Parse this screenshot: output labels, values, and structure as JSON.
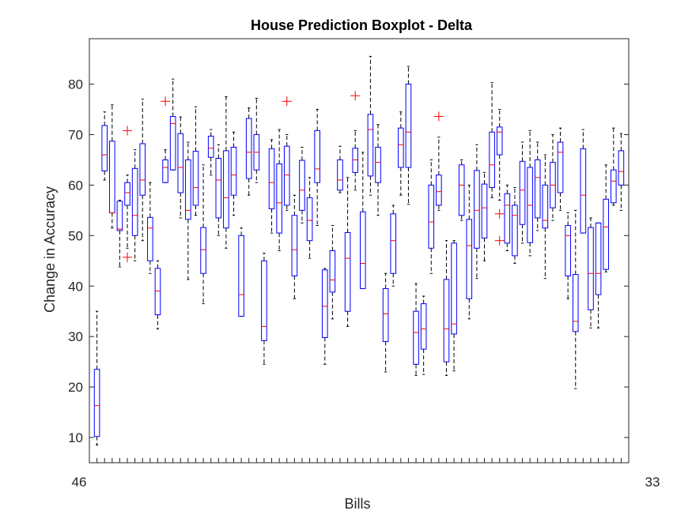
{
  "chart_data": {
    "type": "boxplot",
    "title": "House Prediction Boxplot - Delta",
    "xlabel": "Bills",
    "ylabel": "Change in Accuracy",
    "ylim": [
      5,
      89
    ],
    "yticks": [
      10,
      20,
      30,
      40,
      50,
      60,
      70,
      80
    ],
    "grid": false,
    "box_color": "#0000ff",
    "median_color": "#ff0000",
    "outlier_color": "#ff0000",
    "whisker_color": "#000000",
    "x_tick_label_first": "46",
    "x_tick_label_last": "33",
    "boxes": [
      {
        "min": 8.5,
        "q1": 10.2,
        "median": 16.3,
        "q3": 23.5,
        "max": 35
      },
      {
        "min": 61,
        "q1": 62.8,
        "median": 66,
        "q3": 71.8,
        "max": 74.5
      },
      {
        "min": 51.5,
        "q1": 54.5,
        "median": 54.5,
        "q3": 68.7,
        "max": 75.9
      },
      {
        "min": 43.8,
        "q1": 51,
        "median": 51.3,
        "q3": 56.8,
        "max": 57
      },
      {
        "min": 47.5,
        "q1": 56,
        "median": 58.5,
        "q3": 60.5,
        "max": 62,
        "outliers": [
          70.8,
          45.7
        ]
      },
      {
        "min": 45,
        "q1": 50,
        "median": 54,
        "q3": 63.3,
        "max": 67
      },
      {
        "min": 49,
        "q1": 58,
        "median": 61,
        "q3": 68.2,
        "max": 77
      },
      {
        "min": 42.5,
        "q1": 45,
        "median": 51.5,
        "q3": 53.6,
        "max": 60.5
      },
      {
        "min": 31.5,
        "q1": 34.3,
        "median": 39,
        "q3": 43.5,
        "max": 45
      },
      {
        "min": 60.5,
        "q1": 60.5,
        "median": 63.5,
        "q3": 65,
        "max": 67,
        "outliers": [
          76.6
        ]
      },
      {
        "min": 63,
        "q1": 63,
        "median": 72.2,
        "q3": 73.6,
        "max": 81
      },
      {
        "min": 53.5,
        "q1": 58.5,
        "median": 63.5,
        "q3": 70.2,
        "max": 73.5
      },
      {
        "min": 41.3,
        "q1": 53.2,
        "median": 55,
        "q3": 65,
        "max": 68.5
      },
      {
        "min": 54,
        "q1": 56,
        "median": 59.5,
        "q3": 66.7,
        "max": 75.5
      },
      {
        "min": 36.5,
        "q1": 42.5,
        "median": 47.2,
        "q3": 51.6,
        "max": 64
      },
      {
        "min": 62,
        "q1": 65.5,
        "median": 67.3,
        "q3": 69.7,
        "max": 71
      },
      {
        "min": 50,
        "q1": 53.5,
        "median": 61,
        "q3": 65.3,
        "max": 68
      },
      {
        "min": 47.5,
        "q1": 51.5,
        "median": 57.5,
        "q3": 66.8,
        "max": 77.5
      },
      {
        "min": 54,
        "q1": 58,
        "median": 62,
        "q3": 67.5,
        "max": 70.5
      },
      {
        "min": 34,
        "q1": 34,
        "median": 38.3,
        "q3": 50,
        "max": 51.5
      },
      {
        "min": 58,
        "q1": 61.3,
        "median": 66.5,
        "q3": 73.2,
        "max": 75.3
      },
      {
        "min": 60.5,
        "q1": 63,
        "median": 66.5,
        "q3": 70,
        "max": 77.2
      },
      {
        "min": 24.5,
        "q1": 29.2,
        "median": 32,
        "q3": 45,
        "max": 46.5
      },
      {
        "min": 50.5,
        "q1": 55.3,
        "median": 60.5,
        "q3": 67.2,
        "max": 69
      },
      {
        "min": 47,
        "q1": 50.5,
        "median": 56.5,
        "q3": 64.2,
        "max": 71
      },
      {
        "min": 55,
        "q1": 56,
        "median": 62,
        "q3": 67.7,
        "max": 70,
        "outliers": [
          76.6
        ]
      },
      {
        "min": 37.5,
        "q1": 42,
        "median": 47.2,
        "q3": 54,
        "max": 58
      },
      {
        "min": 52.5,
        "q1": 55,
        "median": 59,
        "q3": 64.9,
        "max": 67.5
      },
      {
        "min": 45.5,
        "q1": 49,
        "median": 53,
        "q3": 57.5,
        "max": 61.5
      },
      {
        "min": 52,
        "q1": 60.5,
        "median": 63.2,
        "q3": 70.8,
        "max": 75
      },
      {
        "min": 24.5,
        "q1": 29.8,
        "median": 36,
        "q3": 43.2,
        "max": 43.5
      },
      {
        "min": 33.5,
        "q1": 38.8,
        "median": 41.2,
        "q3": 47,
        "max": 52
      },
      {
        "min": 58.5,
        "q1": 59,
        "median": 61,
        "q3": 65,
        "max": 67.7
      },
      {
        "min": 32,
        "q1": 35,
        "median": 45.5,
        "q3": 50.6,
        "max": 61.5
      },
      {
        "min": 59,
        "q1": 62.5,
        "median": 65,
        "q3": 67.3,
        "max": 70.8,
        "outliers": [
          77.7
        ]
      },
      {
        "min": 39.5,
        "q1": 39.5,
        "median": 44.5,
        "q3": 54.7,
        "max": 66.5
      },
      {
        "min": 58,
        "q1": 61.8,
        "median": 71,
        "q3": 74,
        "max": 85.5
      },
      {
        "min": 54,
        "q1": 60.5,
        "median": 64.5,
        "q3": 67.5,
        "max": 72
      },
      {
        "min": 23,
        "q1": 29,
        "median": 34.5,
        "q3": 39.5,
        "max": 42.5
      },
      {
        "min": 40,
        "q1": 42.5,
        "median": 49,
        "q3": 54.3,
        "max": 56
      },
      {
        "min": 58,
        "q1": 63.5,
        "median": 68,
        "q3": 71.3,
        "max": 74.5
      },
      {
        "min": 56.2,
        "q1": 63.5,
        "median": 70.5,
        "q3": 80,
        "max": 83.5
      },
      {
        "min": 22.3,
        "q1": 24.5,
        "median": 30.8,
        "q3": 35,
        "max": 40.5
      },
      {
        "min": 22.5,
        "q1": 27.5,
        "median": 31.5,
        "q3": 36.5,
        "max": 38
      },
      {
        "min": 42.5,
        "q1": 47.5,
        "median": 52.7,
        "q3": 60,
        "max": 65
      },
      {
        "min": 55,
        "q1": 56,
        "median": 58.7,
        "q3": 62,
        "max": 69.5,
        "outliers": [
          73.6
        ]
      },
      {
        "min": 22.3,
        "q1": 25,
        "median": 31.5,
        "q3": 41.3,
        "max": 49
      },
      {
        "min": 23.2,
        "q1": 30.5,
        "median": 32.5,
        "q3": 48.5,
        "max": 49
      },
      {
        "min": 53,
        "q1": 54,
        "median": 60,
        "q3": 64,
        "max": 65
      },
      {
        "min": 33.5,
        "q1": 37.5,
        "median": 48,
        "q3": 53.2,
        "max": 60
      },
      {
        "min": 41.5,
        "q1": 47.5,
        "median": 55,
        "q3": 62.9,
        "max": 68
      },
      {
        "min": 45,
        "q1": 49.5,
        "median": 55.5,
        "q3": 60.2,
        "max": 62.5
      },
      {
        "min": 57.5,
        "q1": 59.5,
        "median": 64,
        "q3": 70.5,
        "max": 80.3
      },
      {
        "min": 57,
        "q1": 66,
        "median": 70.5,
        "q3": 71.5,
        "max": 75,
        "outliers": [
          54.3,
          49
        ]
      },
      {
        "min": 47,
        "q1": 48.5,
        "median": 56,
        "q3": 58.3,
        "max": 60
      },
      {
        "min": 44.5,
        "q1": 46,
        "median": 54,
        "q3": 56,
        "max": 59.5
      },
      {
        "min": 48.5,
        "q1": 52.2,
        "median": 59,
        "q3": 64.7,
        "max": 68.5
      },
      {
        "min": 46,
        "q1": 48.6,
        "median": 56,
        "q3": 63.5,
        "max": 70.8
      },
      {
        "min": 51,
        "q1": 53.5,
        "median": 61.5,
        "q3": 65,
        "max": 68.5
      },
      {
        "min": 41.5,
        "q1": 51.5,
        "median": 53,
        "q3": 60,
        "max": 66
      },
      {
        "min": 53,
        "q1": 55.5,
        "median": 60,
        "q3": 64.5,
        "max": 70
      },
      {
        "min": 55,
        "q1": 58.5,
        "median": 66.5,
        "q3": 68.5,
        "max": 71.3
      },
      {
        "min": 37.5,
        "q1": 42,
        "median": 50,
        "q3": 52,
        "max": 54.5
      },
      {
        "min": 19.7,
        "q1": 31,
        "median": 33,
        "q3": 42.3,
        "max": 55
      },
      {
        "min": 50.5,
        "q1": 50.5,
        "median": 58,
        "q3": 67.2,
        "max": 71
      },
      {
        "min": 31.7,
        "q1": 35.3,
        "median": 42.5,
        "q3": 51.6,
        "max": 53.5
      },
      {
        "min": 31.7,
        "q1": 38.3,
        "median": 42.5,
        "q3": 52.5,
        "max": 52.5
      },
      {
        "min": 42.8,
        "q1": 43.3,
        "median": 51.7,
        "q3": 57.2,
        "max": 64
      },
      {
        "min": 56,
        "q1": 56.5,
        "median": 60.8,
        "q3": 63,
        "max": 71.3
      },
      {
        "min": 55,
        "q1": 60,
        "median": 62.7,
        "q3": 66.8,
        "max": 70.2
      }
    ]
  }
}
